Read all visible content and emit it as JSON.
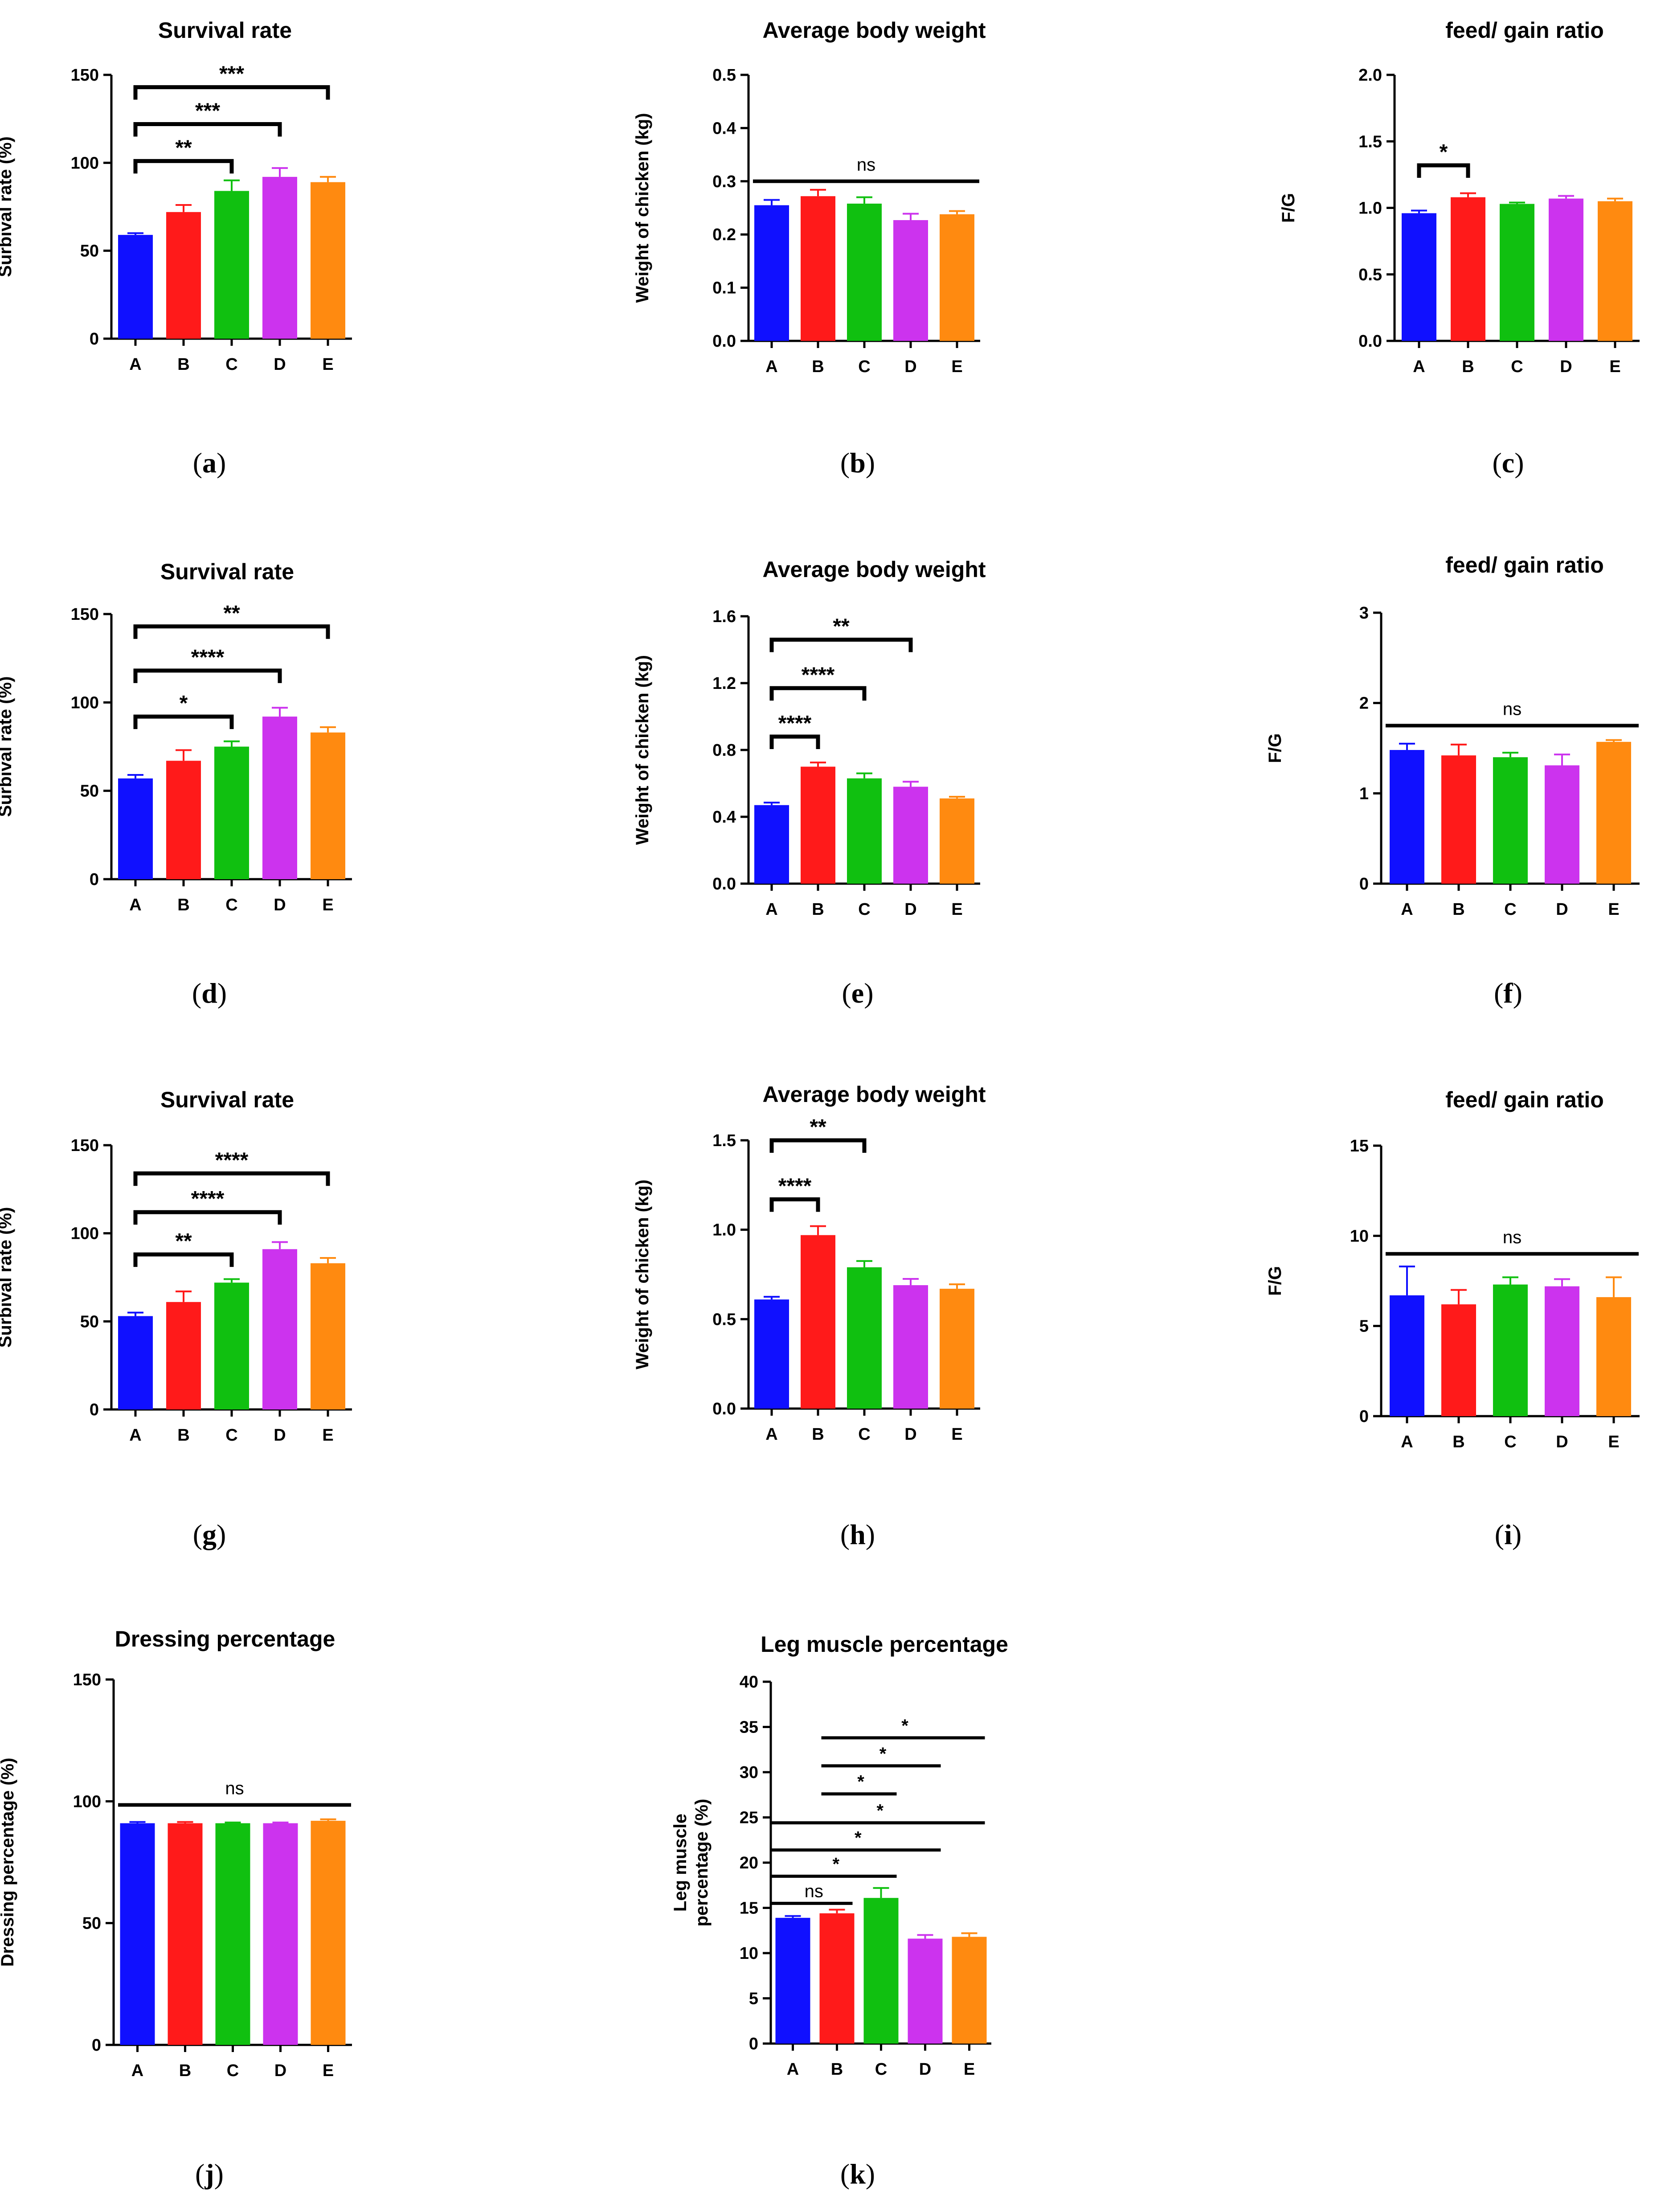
{
  "figure_id": "chicken-performance-panels",
  "groups": [
    "A",
    "B",
    "C",
    "D",
    "E"
  ],
  "colors": {
    "A": "#1010ff",
    "B": "#ff1a1a",
    "C": "#10c010",
    "D": "#cc33ee",
    "E": "#ff8a10",
    "axis": "#000000"
  },
  "chart_data": [
    {
      "id": "a",
      "caption": "a",
      "type": "bar",
      "title": "Survival rate",
      "ylabel": "Surbival rate (%)",
      "categories": [
        "A",
        "B",
        "C",
        "D",
        "E"
      ],
      "values": [
        59,
        72,
        84,
        92,
        89
      ],
      "errors": [
        1,
        4,
        6,
        5,
        3
      ],
      "ylim": [
        0,
        150
      ],
      "yticks": [
        0,
        50,
        100,
        150
      ],
      "ytick_labels": [
        "0",
        "50",
        "100",
        "150"
      ],
      "significance": [
        {
          "from": "A",
          "to": "C",
          "label": "**",
          "y": 101,
          "style": "bracket"
        },
        {
          "from": "A",
          "to": "D",
          "label": "***",
          "y": 122,
          "style": "bracket"
        },
        {
          "from": "A",
          "to": "E",
          "label": "***",
          "y": 143,
          "style": "bracket"
        }
      ]
    },
    {
      "id": "b",
      "caption": "b",
      "type": "bar",
      "title": "Average body weight",
      "ylabel": "Weight of chicken (kg)",
      "categories": [
        "A",
        "B",
        "C",
        "D",
        "E"
      ],
      "values": [
        0.255,
        0.272,
        0.258,
        0.227,
        0.238
      ],
      "errors": [
        0.01,
        0.012,
        0.012,
        0.012,
        0.006
      ],
      "ylim": [
        0,
        0.5
      ],
      "yticks": [
        0,
        0.1,
        0.2,
        0.3,
        0.4,
        0.5
      ],
      "ytick_labels": [
        "0.0",
        "0.1",
        "0.2",
        "0.3",
        "0.4",
        "0.5"
      ],
      "significance": [
        {
          "from": "A",
          "to": "E",
          "label": "ns",
          "y": 0.3,
          "style": "line"
        }
      ]
    },
    {
      "id": "c",
      "caption": "c",
      "type": "bar",
      "title": "feed/ gain ratio",
      "ylabel": "F/G",
      "categories": [
        "A",
        "B",
        "C",
        "D",
        "E"
      ],
      "values": [
        0.96,
        1.08,
        1.03,
        1.07,
        1.05
      ],
      "errors": [
        0.02,
        0.03,
        0.01,
        0.02,
        0.02
      ],
      "ylim": [
        0,
        2.0
      ],
      "yticks": [
        0,
        0.5,
        1.0,
        1.5,
        2.0
      ],
      "ytick_labels": [
        "0.0",
        "0.5",
        "1.0",
        "1.5",
        "2.0"
      ],
      "significance": [
        {
          "from": "A",
          "to": "B",
          "label": "*",
          "y": 1.32,
          "style": "bracket"
        }
      ]
    },
    {
      "id": "d",
      "caption": "d",
      "type": "bar",
      "title": "Survival rate",
      "ylabel": "Surbival rate (%)",
      "categories": [
        "A",
        "B",
        "C",
        "D",
        "E"
      ],
      "values": [
        57,
        67,
        75,
        92,
        83
      ],
      "errors": [
        2,
        6,
        3,
        5,
        3
      ],
      "ylim": [
        0,
        150
      ],
      "yticks": [
        0,
        50,
        100,
        150
      ],
      "ytick_labels": [
        "0",
        "50",
        "100",
        "150"
      ],
      "significance": [
        {
          "from": "A",
          "to": "C",
          "label": "*",
          "y": 92,
          "style": "bracket"
        },
        {
          "from": "A",
          "to": "D",
          "label": "****",
          "y": 118,
          "style": "bracket"
        },
        {
          "from": "A",
          "to": "E",
          "label": "**",
          "y": 143,
          "style": "bracket"
        }
      ]
    },
    {
      "id": "e",
      "caption": "e",
      "type": "bar",
      "title": "Average body weight",
      "ylabel": "Weight of chicken (kg)",
      "categories": [
        "A",
        "B",
        "C",
        "D",
        "E"
      ],
      "values": [
        0.47,
        0.7,
        0.63,
        0.58,
        0.51
      ],
      "errors": [
        0.015,
        0.025,
        0.03,
        0.03,
        0.01
      ],
      "ylim": [
        0,
        1.6
      ],
      "yticks": [
        0,
        0.4,
        0.8,
        1.2,
        1.6
      ],
      "ytick_labels": [
        "0.0",
        "0.4",
        "0.8",
        "1.2",
        "1.6"
      ],
      "significance": [
        {
          "from": "A",
          "to": "B",
          "label": "****",
          "y": 0.88,
          "style": "bracket"
        },
        {
          "from": "A",
          "to": "C",
          "label": "****",
          "y": 1.17,
          "style": "bracket"
        },
        {
          "from": "A",
          "to": "D",
          "label": "**",
          "y": 1.46,
          "style": "bracket"
        }
      ]
    },
    {
      "id": "f",
      "caption": "f",
      "type": "bar",
      "title": "feed/ gain ratio",
      "ylabel": "F/G",
      "categories": [
        "A",
        "B",
        "C",
        "D",
        "E"
      ],
      "values": [
        1.48,
        1.42,
        1.4,
        1.31,
        1.57
      ],
      "errors": [
        0.07,
        0.12,
        0.05,
        0.12,
        0.02
      ],
      "ylim": [
        0,
        3
      ],
      "yticks": [
        0,
        1,
        2,
        3
      ],
      "ytick_labels": [
        "0",
        "1",
        "2",
        "3"
      ],
      "significance": [
        {
          "from": "A",
          "to": "E",
          "label": "ns",
          "y": 1.75,
          "style": "line"
        }
      ]
    },
    {
      "id": "g",
      "caption": "g",
      "type": "bar",
      "title": "Survival rate",
      "ylabel": "Surbival rate (%)",
      "categories": [
        "A",
        "B",
        "C",
        "D",
        "E"
      ],
      "values": [
        53,
        61,
        72,
        91,
        83
      ],
      "errors": [
        2,
        6,
        2,
        4,
        3
      ],
      "ylim": [
        0,
        150
      ],
      "yticks": [
        0,
        50,
        100,
        150
      ],
      "ytick_labels": [
        "0",
        "50",
        "100",
        "150"
      ],
      "significance": [
        {
          "from": "A",
          "to": "C",
          "label": "**",
          "y": 88,
          "style": "bracket"
        },
        {
          "from": "A",
          "to": "D",
          "label": "****",
          "y": 112,
          "style": "bracket"
        },
        {
          "from": "A",
          "to": "E",
          "label": "****",
          "y": 134,
          "style": "bracket"
        }
      ]
    },
    {
      "id": "h",
      "caption": "h",
      "type": "bar",
      "title": "Average body weight",
      "ylabel": "Weight of chicken (kg)",
      "categories": [
        "A",
        "B",
        "C",
        "D",
        "E"
      ],
      "values": [
        0.61,
        0.97,
        0.79,
        0.69,
        0.67
      ],
      "errors": [
        0.015,
        0.05,
        0.035,
        0.035,
        0.025
      ],
      "ylim": [
        0,
        1.5
      ],
      "yticks": [
        0,
        0.5,
        1.0,
        1.5
      ],
      "ytick_labels": [
        "0.0",
        "0.5",
        "1.0",
        "1.5"
      ],
      "significance": [
        {
          "from": "A",
          "to": "B",
          "label": "****",
          "y": 1.17,
          "style": "bracket"
        },
        {
          "from": "A",
          "to": "C",
          "label": "**",
          "y": 1.5,
          "style": "bracket"
        }
      ]
    },
    {
      "id": "i",
      "caption": "i",
      "type": "bar",
      "title": "feed/ gain ratio",
      "ylabel": "F/G",
      "categories": [
        "A",
        "B",
        "C",
        "D",
        "E"
      ],
      "values": [
        6.7,
        6.2,
        7.3,
        7.2,
        6.6
      ],
      "errors": [
        1.6,
        0.8,
        0.4,
        0.4,
        1.1
      ],
      "ylim": [
        0,
        15
      ],
      "yticks": [
        0,
        5,
        10,
        15
      ],
      "ytick_labels": [
        "0",
        "5",
        "10",
        "15"
      ],
      "significance": [
        {
          "from": "A",
          "to": "E",
          "label": "ns",
          "y": 9.0,
          "style": "line"
        }
      ]
    },
    {
      "id": "j",
      "caption": "j",
      "type": "bar",
      "title": "Dressing percentage",
      "ylabel": "Dressing percentage (%)",
      "categories": [
        "A",
        "B",
        "C",
        "D",
        "E"
      ],
      "values": [
        91,
        91,
        91,
        91,
        92
      ],
      "errors": [
        0.5,
        0.5,
        0.3,
        0.3,
        0.6
      ],
      "ylim": [
        0,
        150
      ],
      "yticks": [
        0,
        50,
        100,
        150
      ],
      "ytick_labels": [
        "0",
        "50",
        "100",
        "150"
      ],
      "significance": [
        {
          "from": "A",
          "to": "E",
          "label": "ns",
          "y": 98.5,
          "style": "line"
        }
      ]
    },
    {
      "id": "k",
      "caption": "k",
      "type": "bar",
      "title": "Leg muscle percentage",
      "ylabel": "Leg muscle percentage (%)",
      "ylabel_lines": [
        "Leg muscle",
        "percentage (%)"
      ],
      "categories": [
        "A",
        "B",
        "C",
        "D",
        "E"
      ],
      "values": [
        13.9,
        14.4,
        16.1,
        11.6,
        11.8
      ],
      "errors": [
        0.2,
        0.4,
        1.1,
        0.4,
        0.4
      ],
      "ylim": [
        0,
        40
      ],
      "yticks": [
        0,
        5,
        10,
        15,
        20,
        25,
        30,
        35,
        40
      ],
      "ytick_labels": [
        "0",
        "5",
        "10",
        "15",
        "20",
        "25",
        "30",
        "35",
        "40"
      ],
      "significance": [
        {
          "from": "A",
          "to": "B",
          "label": "ns",
          "y": 15.5,
          "style": "line"
        },
        {
          "from": "A",
          "to": "C",
          "label": "*",
          "y": 18.5,
          "style": "line"
        },
        {
          "from": "A",
          "to": "D",
          "label": "*",
          "y": 21.4,
          "style": "line"
        },
        {
          "from": "A",
          "to": "E",
          "label": "*",
          "y": 24.4,
          "style": "line"
        },
        {
          "from": "B",
          "to": "C",
          "label": "*",
          "y": 27.6,
          "style": "line"
        },
        {
          "from": "B",
          "to": "D",
          "label": "*",
          "y": 30.7,
          "style": "line"
        },
        {
          "from": "B",
          "to": "E",
          "label": "*",
          "y": 33.8,
          "style": "line"
        }
      ]
    }
  ]
}
